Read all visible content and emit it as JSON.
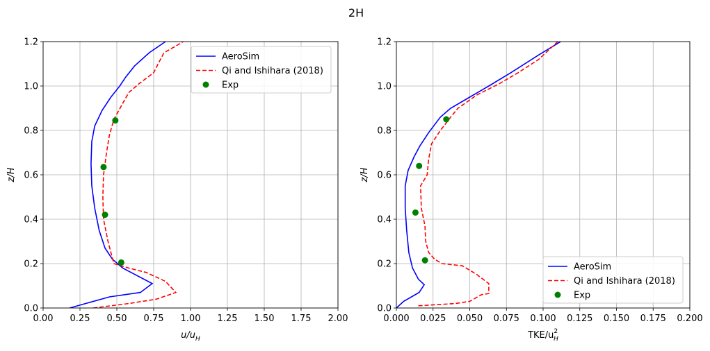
{
  "figure": {
    "title": "2H"
  },
  "chart_data": [
    {
      "type": "line",
      "title": "",
      "xlabel": "u/u",
      "xlabel_sub": "H",
      "ylabel": "z/H",
      "xlim": [
        0,
        2.0
      ],
      "ylim": [
        0,
        1.2
      ],
      "x_ticks": [
        0,
        0.25,
        0.5,
        0.75,
        1.0,
        1.25,
        1.5,
        1.75,
        2.0
      ],
      "x_tick_labels": [
        "0.00",
        "0.25",
        "0.50",
        "0.75",
        "1.00",
        "1.25",
        "1.50",
        "1.75",
        "2.00"
      ],
      "y_ticks": [
        0,
        0.2,
        0.4,
        0.6,
        0.8,
        1.0,
        1.2
      ],
      "y_tick_labels": [
        "0.0",
        "0.2",
        "0.4",
        "0.6",
        "0.8",
        "1.0",
        "1.2"
      ],
      "grid": true,
      "legend_position": "upper-right",
      "series": [
        {
          "name": "AeroSim",
          "style": "solid",
          "color": "#0000ff",
          "points": [
            [
              0.18,
              0.0
            ],
            [
              0.45,
              0.05
            ],
            [
              0.66,
              0.07
            ],
            [
              0.74,
              0.11
            ],
            [
              0.54,
              0.18
            ],
            [
              0.47,
              0.22
            ],
            [
              0.42,
              0.27
            ],
            [
              0.38,
              0.35
            ],
            [
              0.35,
              0.45
            ],
            [
              0.33,
              0.55
            ],
            [
              0.325,
              0.65
            ],
            [
              0.33,
              0.75
            ],
            [
              0.35,
              0.82
            ],
            [
              0.4,
              0.89
            ],
            [
              0.46,
              0.95
            ],
            [
              0.52,
              1.0
            ],
            [
              0.56,
              1.04
            ],
            [
              0.62,
              1.09
            ],
            [
              0.72,
              1.15
            ],
            [
              0.83,
              1.2
            ]
          ]
        },
        {
          "name": "Qi and Ishihara (2018)",
          "style": "dashed",
          "color": "#ff0000",
          "points": [
            [
              0.34,
              0.0
            ],
            [
              0.58,
              0.02
            ],
            [
              0.77,
              0.04
            ],
            [
              0.9,
              0.07
            ],
            [
              0.83,
              0.12
            ],
            [
              0.7,
              0.16
            ],
            [
              0.58,
              0.18
            ],
            [
              0.48,
              0.2
            ],
            [
              0.46,
              0.25
            ],
            [
              0.44,
              0.3
            ],
            [
              0.41,
              0.4
            ],
            [
              0.405,
              0.5
            ],
            [
              0.41,
              0.6
            ],
            [
              0.43,
              0.7
            ],
            [
              0.45,
              0.78
            ],
            [
              0.48,
              0.85
            ],
            [
              0.53,
              0.91
            ],
            [
              0.58,
              0.97
            ],
            [
              0.65,
              1.01
            ],
            [
              0.75,
              1.06
            ],
            [
              0.78,
              1.1
            ],
            [
              0.82,
              1.15
            ],
            [
              0.9,
              1.18
            ],
            [
              0.95,
              1.2
            ]
          ]
        },
        {
          "name": "Exp",
          "style": "marker",
          "color": "#008000",
          "points": [
            [
              0.49,
              0.845
            ],
            [
              0.41,
              0.635
            ],
            [
              0.42,
              0.42
            ],
            [
              0.53,
              0.205
            ]
          ]
        }
      ]
    },
    {
      "type": "line",
      "title": "",
      "xlabel": "TKE/u",
      "xlabel_sub": "H",
      "xlabel_sup": "2",
      "ylabel": "z/H",
      "xlim": [
        0,
        0.2
      ],
      "ylim": [
        0,
        1.2
      ],
      "x_ticks": [
        0,
        0.025,
        0.05,
        0.075,
        0.1,
        0.125,
        0.15,
        0.175,
        0.2
      ],
      "x_tick_labels": [
        "0.000",
        "0.025",
        "0.050",
        "0.075",
        "0.100",
        "0.125",
        "0.150",
        "0.175",
        "0.200"
      ],
      "y_ticks": [
        0,
        0.2,
        0.4,
        0.6,
        0.8,
        1.0,
        1.2
      ],
      "y_tick_labels": [
        "0.0",
        "0.2",
        "0.4",
        "0.6",
        "0.8",
        "1.0",
        "1.2"
      ],
      "grid": true,
      "legend_position": "lower-right",
      "series": [
        {
          "name": "AeroSim",
          "style": "solid",
          "color": "#0000ff",
          "points": [
            [
              0.0,
              0.0
            ],
            [
              0.005,
              0.03
            ],
            [
              0.0155,
              0.07
            ],
            [
              0.019,
              0.105
            ],
            [
              0.015,
              0.13
            ],
            [
              0.011,
              0.18
            ],
            [
              0.0085,
              0.25
            ],
            [
              0.007,
              0.35
            ],
            [
              0.006,
              0.45
            ],
            [
              0.006,
              0.55
            ],
            [
              0.008,
              0.62
            ],
            [
              0.012,
              0.68
            ],
            [
              0.016,
              0.73
            ],
            [
              0.022,
              0.79
            ],
            [
              0.03,
              0.86
            ],
            [
              0.037,
              0.9
            ],
            [
              0.05,
              0.95
            ],
            [
              0.063,
              1.0
            ],
            [
              0.078,
              1.06
            ],
            [
              0.097,
              1.14
            ],
            [
              0.112,
              1.2
            ]
          ]
        },
        {
          "name": "Qi and Ishihara (2018)",
          "style": "dashed",
          "color": "#ff0000",
          "points": [
            [
              0.015,
              0.01
            ],
            [
              0.04,
              0.02
            ],
            [
              0.05,
              0.03
            ],
            [
              0.058,
              0.06
            ],
            [
              0.063,
              0.065
            ],
            [
              0.063,
              0.11
            ],
            [
              0.055,
              0.15
            ],
            [
              0.045,
              0.19
            ],
            [
              0.031,
              0.2
            ],
            [
              0.026,
              0.22
            ],
            [
              0.022,
              0.25
            ],
            [
              0.02,
              0.3
            ],
            [
              0.0195,
              0.37
            ],
            [
              0.017,
              0.45
            ],
            [
              0.0165,
              0.55
            ],
            [
              0.021,
              0.6
            ],
            [
              0.022,
              0.67
            ],
            [
              0.024,
              0.74
            ],
            [
              0.03,
              0.8
            ],
            [
              0.037,
              0.86
            ],
            [
              0.042,
              0.9
            ],
            [
              0.055,
              0.96
            ],
            [
              0.07,
              1.01
            ],
            [
              0.083,
              1.06
            ],
            [
              0.097,
              1.12
            ],
            [
              0.11,
              1.2
            ]
          ]
        },
        {
          "name": "Exp",
          "style": "marker",
          "color": "#008000",
          "points": [
            [
              0.034,
              0.85
            ],
            [
              0.0155,
              0.64
            ],
            [
              0.013,
              0.43
            ],
            [
              0.0195,
              0.215
            ]
          ]
        }
      ]
    }
  ]
}
